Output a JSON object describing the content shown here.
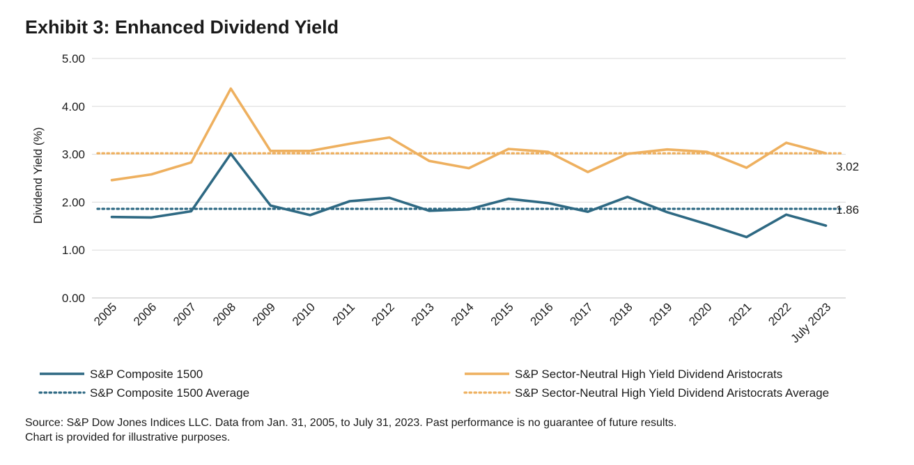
{
  "title": "Exhibit 3: Enhanced Dividend Yield",
  "source_lines": [
    "Source: S&P Dow Jones Indices LLC. Data from Jan. 31, 2005, to July 31, 2023. Past performance is no guarantee of future results.",
    "Chart is provided for illustrative purposes."
  ],
  "colors": {
    "composite": "#2e6983",
    "aristocrats": "#eeb05f",
    "grid": "#d9d9d9",
    "axis": "#bfbfbf"
  },
  "chart_data": {
    "type": "line",
    "title": "Exhibit 3: Enhanced Dividend Yield",
    "xlabel": "",
    "ylabel": "Dividend Yield (%)",
    "ylim": [
      0,
      5
    ],
    "yticks": [
      "0.00",
      "1.00",
      "2.00",
      "3.00",
      "4.00",
      "5.00"
    ],
    "grid": true,
    "legend": "bottom",
    "categories": [
      "2005",
      "2006",
      "2007",
      "2008",
      "2009",
      "2010",
      "2011",
      "2012",
      "2013",
      "2014",
      "2015",
      "2016",
      "2017",
      "2018",
      "2019",
      "2020",
      "2021",
      "2022",
      "July 2023"
    ],
    "series": [
      {
        "name": "S&P Composite 1500",
        "style": "solid",
        "color": "#2e6983",
        "values": [
          1.69,
          1.68,
          1.81,
          3.01,
          1.93,
          1.73,
          2.02,
          2.09,
          1.82,
          1.85,
          2.07,
          1.98,
          1.8,
          2.11,
          1.79,
          1.54,
          1.27,
          1.74,
          1.51
        ]
      },
      {
        "name": "S&P Sector-Neutral High Yield Dividend Aristocrats",
        "style": "solid",
        "color": "#eeb05f",
        "values": [
          2.46,
          2.58,
          2.83,
          4.37,
          3.07,
          3.07,
          3.22,
          3.35,
          2.86,
          2.71,
          3.11,
          3.05,
          2.63,
          3.01,
          3.1,
          3.05,
          2.72,
          3.24,
          3.02
        ]
      },
      {
        "name": "S&P Composite 1500 Average",
        "style": "dotted",
        "color": "#2e6983",
        "values": [
          1.86,
          1.86,
          1.86,
          1.86,
          1.86,
          1.86,
          1.86,
          1.86,
          1.86,
          1.86,
          1.86,
          1.86,
          1.86,
          1.86,
          1.86,
          1.86,
          1.86,
          1.86,
          1.86
        ]
      },
      {
        "name": "S&P Sector-Neutral High Yield Dividend Aristocrats Average",
        "style": "dotted",
        "color": "#eeb05f",
        "values": [
          3.02,
          3.02,
          3.02,
          3.02,
          3.02,
          3.02,
          3.02,
          3.02,
          3.02,
          3.02,
          3.02,
          3.02,
          3.02,
          3.02,
          3.02,
          3.02,
          3.02,
          3.02,
          3.02
        ]
      }
    ],
    "annotations": [
      {
        "text": "3.02",
        "value": 3.02,
        "series": "S&P Sector-Neutral High Yield Dividend Aristocrats Average"
      },
      {
        "text": "1.86",
        "value": 1.86,
        "series": "S&P Composite 1500 Average"
      }
    ]
  }
}
